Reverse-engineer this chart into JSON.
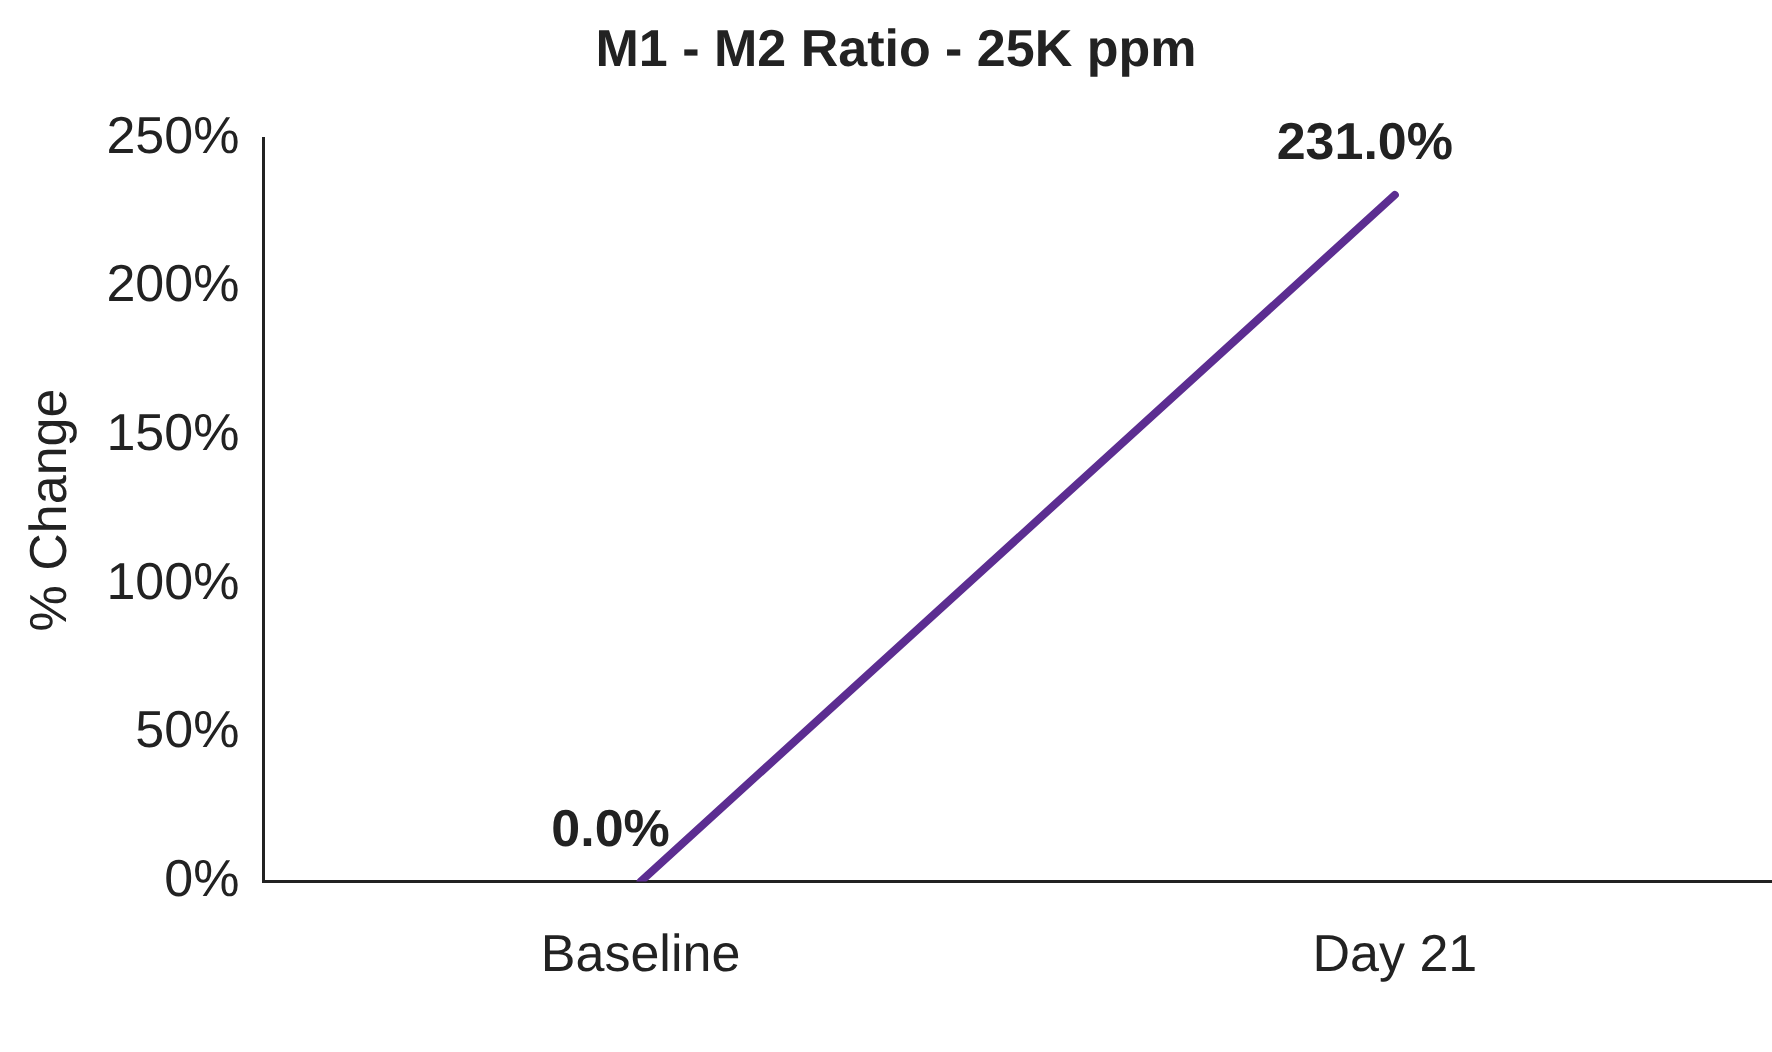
{
  "chart_data": {
    "type": "line",
    "title": "M1 - M2 Ratio - 25K ppm",
    "ylabel": "% Change",
    "categories": [
      "Baseline",
      "Day 21"
    ],
    "series": [
      {
        "color": "#5c2d91",
        "values": [
          0,
          231.0
        ],
        "value_labels": [
          "0.0%",
          "231.0%"
        ]
      }
    ],
    "ylim": [
      0,
      250
    ],
    "yticks": [
      {
        "value": 0,
        "label": "0%"
      },
      {
        "value": 50,
        "label": "50%"
      },
      {
        "value": 100,
        "label": "100%"
      },
      {
        "value": 150,
        "label": "150%"
      },
      {
        "value": 200,
        "label": "200%"
      },
      {
        "value": 250,
        "label": "250%"
      }
    ],
    "grid": false,
    "legend": false,
    "marker": "none",
    "line_style": "solid"
  }
}
